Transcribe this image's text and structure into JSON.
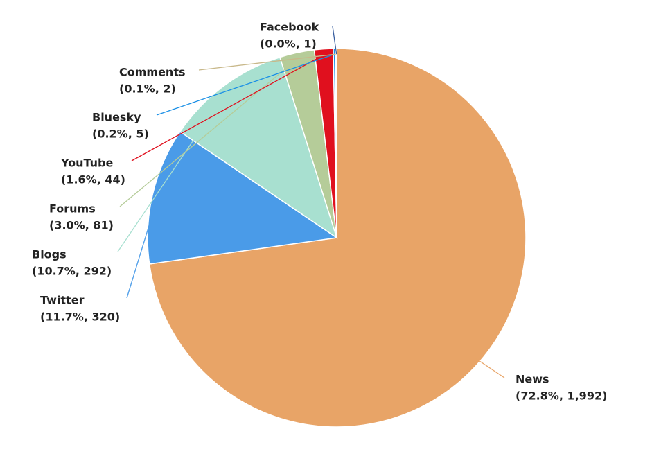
{
  "chart_data": {
    "type": "pie",
    "categories": [
      "News",
      "Twitter",
      "Blogs",
      "Forums",
      "YouTube",
      "Bluesky",
      "Comments",
      "Facebook"
    ],
    "values": [
      1992,
      320,
      292,
      81,
      44,
      5,
      2,
      1
    ],
    "value_labels": [
      "(72.8%, 1,992)",
      "(11.7%, 320)",
      "(10.7%, 292)",
      "(3.0%, 81)",
      "(1.6%, 44)",
      "(0.2%, 5)",
      "(0.1%, 2)",
      "(0.0%, 1)"
    ],
    "colors": [
      "#e8a467",
      "#4a9be8",
      "#a8e0d0",
      "#b5cc99",
      "#e0101e",
      "#1a8fe6",
      "#c8b88a",
      "#3a5fa0"
    ]
  }
}
